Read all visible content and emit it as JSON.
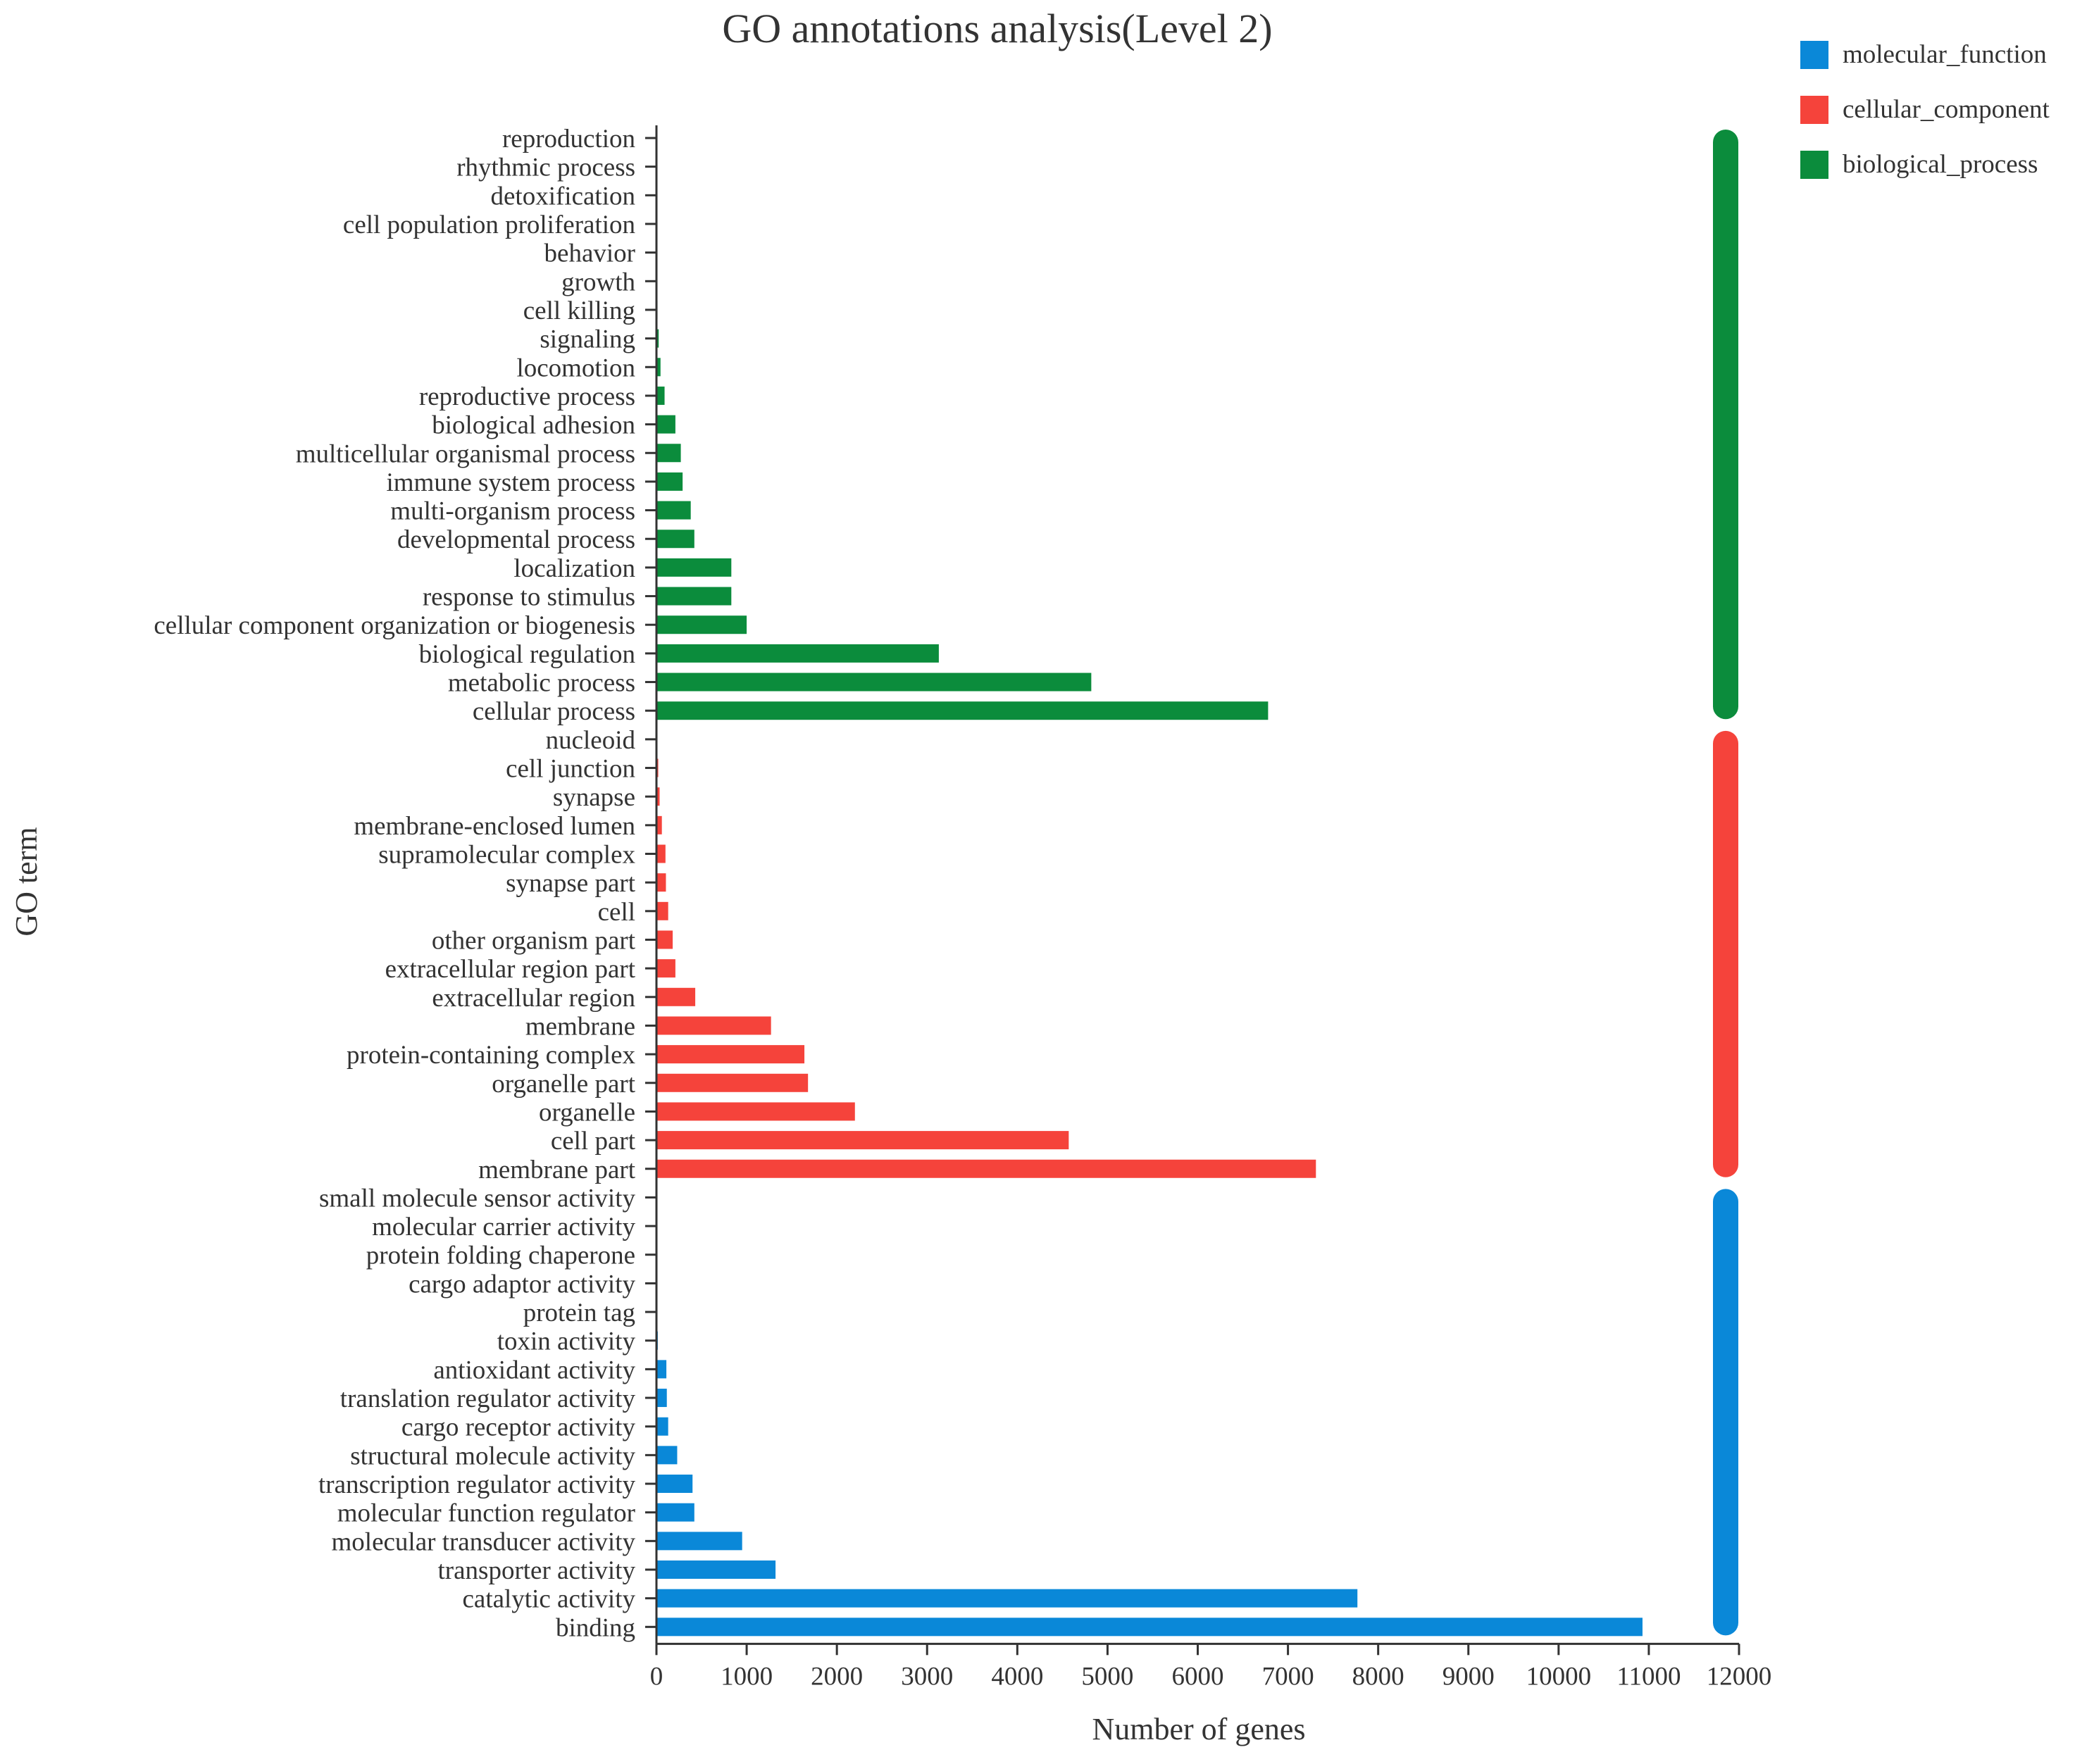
{
  "chart_data": {
    "type": "bar",
    "orientation": "horizontal",
    "title": "GO annotations analysis(Level 2)",
    "xlabel": "Number of genes",
    "ylabel": "GO term",
    "xlim": [
      0,
      12000
    ],
    "xticks": [
      0,
      1000,
      2000,
      3000,
      4000,
      5000,
      6000,
      7000,
      8000,
      9000,
      10000,
      11000,
      12000
    ],
    "grid": false,
    "legend_position": "top-right",
    "colors": {
      "molecular_function": "#0a88d8",
      "cellular_component": "#f5433b",
      "biological_process": "#0b8c3c"
    },
    "legend": [
      {
        "name": "molecular_function",
        "color": "#0a88d8"
      },
      {
        "name": "cellular_component",
        "color": "#f5433b"
      },
      {
        "name": "biological_process",
        "color": "#0b8c3c"
      }
    ],
    "terms": [
      {
        "label": "reproduction",
        "value": 5,
        "category": "biological_process"
      },
      {
        "label": "rhythmic process",
        "value": 5,
        "category": "biological_process"
      },
      {
        "label": "detoxification",
        "value": 6,
        "category": "biological_process"
      },
      {
        "label": "cell population proliferation",
        "value": 7,
        "category": "biological_process"
      },
      {
        "label": "behavior",
        "value": 8,
        "category": "biological_process"
      },
      {
        "label": "growth",
        "value": 10,
        "category": "biological_process"
      },
      {
        "label": "cell killing",
        "value": 12,
        "category": "biological_process"
      },
      {
        "label": "signaling",
        "value": 25,
        "category": "biological_process"
      },
      {
        "label": "locomotion",
        "value": 45,
        "category": "biological_process"
      },
      {
        "label": "reproductive process",
        "value": 90,
        "category": "biological_process"
      },
      {
        "label": "biological adhesion",
        "value": 210,
        "category": "biological_process"
      },
      {
        "label": "multicellular organismal process",
        "value": 270,
        "category": "biological_process"
      },
      {
        "label": "immune system process",
        "value": 290,
        "category": "biological_process"
      },
      {
        "label": "multi-organism process",
        "value": 380,
        "category": "biological_process"
      },
      {
        "label": "developmental process",
        "value": 420,
        "category": "biological_process"
      },
      {
        "label": "localization",
        "value": 830,
        "category": "biological_process"
      },
      {
        "label": "response to stimulus",
        "value": 830,
        "category": "biological_process"
      },
      {
        "label": "cellular component organization or biogenesis",
        "value": 1000,
        "category": "biological_process"
      },
      {
        "label": "biological regulation",
        "value": 3130,
        "category": "biological_process"
      },
      {
        "label": "metabolic process",
        "value": 4820,
        "category": "biological_process"
      },
      {
        "label": "cellular process",
        "value": 6780,
        "category": "biological_process"
      },
      {
        "label": "nucleoid",
        "value": 10,
        "category": "cellular_component"
      },
      {
        "label": "cell junction",
        "value": 20,
        "category": "cellular_component"
      },
      {
        "label": "synapse",
        "value": 35,
        "category": "cellular_component"
      },
      {
        "label": "membrane-enclosed lumen",
        "value": 60,
        "category": "cellular_component"
      },
      {
        "label": "supramolecular complex",
        "value": 100,
        "category": "cellular_component"
      },
      {
        "label": "synapse part",
        "value": 105,
        "category": "cellular_component"
      },
      {
        "label": "cell",
        "value": 130,
        "category": "cellular_component"
      },
      {
        "label": "other organism part",
        "value": 180,
        "category": "cellular_component"
      },
      {
        "label": "extracellular region part",
        "value": 210,
        "category": "cellular_component"
      },
      {
        "label": "extracellular region",
        "value": 430,
        "category": "cellular_component"
      },
      {
        "label": "membrane",
        "value": 1270,
        "category": "cellular_component"
      },
      {
        "label": "protein-containing complex",
        "value": 1640,
        "category": "cellular_component"
      },
      {
        "label": "organelle part",
        "value": 1680,
        "category": "cellular_component"
      },
      {
        "label": "organelle",
        "value": 2200,
        "category": "cellular_component"
      },
      {
        "label": "cell part",
        "value": 4570,
        "category": "cellular_component"
      },
      {
        "label": "membrane part",
        "value": 7310,
        "category": "cellular_component"
      },
      {
        "label": "small molecule sensor activity",
        "value": 3,
        "category": "molecular_function"
      },
      {
        "label": "molecular carrier activity",
        "value": 4,
        "category": "molecular_function"
      },
      {
        "label": "protein folding chaperone",
        "value": 5,
        "category": "molecular_function"
      },
      {
        "label": "cargo adaptor activity",
        "value": 6,
        "category": "molecular_function"
      },
      {
        "label": "protein tag",
        "value": 8,
        "category": "molecular_function"
      },
      {
        "label": "toxin activity",
        "value": 15,
        "category": "molecular_function"
      },
      {
        "label": "antioxidant activity",
        "value": 110,
        "category": "molecular_function"
      },
      {
        "label": "translation regulator activity",
        "value": 115,
        "category": "molecular_function"
      },
      {
        "label": "cargo receptor activity",
        "value": 130,
        "category": "molecular_function"
      },
      {
        "label": "structural molecule activity",
        "value": 230,
        "category": "molecular_function"
      },
      {
        "label": "transcription regulator activity",
        "value": 400,
        "category": "molecular_function"
      },
      {
        "label": "molecular function regulator",
        "value": 420,
        "category": "molecular_function"
      },
      {
        "label": "molecular transducer activity",
        "value": 950,
        "category": "molecular_function"
      },
      {
        "label": "transporter activity",
        "value": 1320,
        "category": "molecular_function"
      },
      {
        "label": "catalytic activity",
        "value": 7770,
        "category": "molecular_function"
      },
      {
        "label": "binding",
        "value": 10930,
        "category": "molecular_function"
      }
    ]
  }
}
